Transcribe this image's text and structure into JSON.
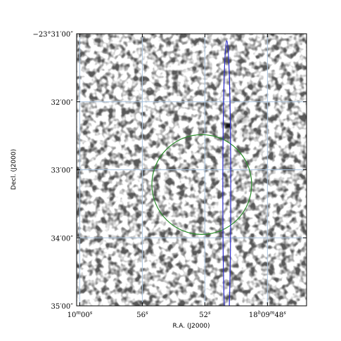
{
  "chart_data": {
    "type": "sky_image",
    "xlabel": "R.A. (J2000)",
    "ylabel": "Decl. (J2000)",
    "x_ticks": [
      {
        "value_sec": 60,
        "label": "10^{m}00^{s}"
      },
      {
        "value_sec": 56,
        "label": "56^{s}"
      },
      {
        "value_sec": 52,
        "label": "52^{s}"
      },
      {
        "value_sec": 48,
        "label": "18^{h}09^{m}48^{s}"
      }
    ],
    "y_ticks": [
      {
        "value_arcsec": -1860,
        "label": "−23°31′00″"
      },
      {
        "value_arcsec": -1920,
        "label": "32′00″"
      },
      {
        "value_arcsec": -1980,
        "label": "33′00″"
      },
      {
        "value_arcsec": -2040,
        "label": "34′00″"
      },
      {
        "value_arcsec": -2100,
        "label": "35′00″"
      }
    ],
    "xlim_sec": [
      60.2,
      45.5
    ],
    "ylim_arcsec": [
      -2100,
      -1860
    ],
    "grid": true,
    "grid_color": "#a9c4e0",
    "colormap": "gray_r",
    "overlays": [
      {
        "shape": "circle",
        "color": "#2a8c2a",
        "center_ra_sec": 52.2,
        "center_dec_arcsec": -1993,
        "radius_arcsec": 44
      },
      {
        "shape": "ellipse",
        "color": "#2b2bcc",
        "center_ra_sec": 50.6,
        "center_dec_arcsec": -1998,
        "semi_minor_arcsec": 3.5,
        "semi_major_arcsec": 132
      }
    ],
    "point_sources": [
      {
        "ra_sec": 50.5,
        "dec_arcsec": -1941,
        "intensity": 1.0
      },
      {
        "ra_sec": 49.6,
        "dec_arcsec": -1935,
        "intensity": 0.3
      },
      {
        "ra_sec": 49.4,
        "dec_arcsec": -1948,
        "intensity": 0.15
      }
    ]
  }
}
